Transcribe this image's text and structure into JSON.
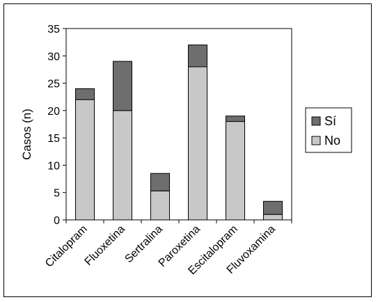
{
  "chart_data": {
    "type": "bar",
    "stacked": true,
    "categories": [
      "Citalopram",
      "Fluoxetina",
      "Sertralina",
      "Paroxetina",
      "Escitalopram",
      "Fluvoxamina"
    ],
    "series": [
      {
        "name": "No",
        "values": [
          22,
          20,
          5.3,
          28,
          18,
          1
        ],
        "color": "#c8c8c8"
      },
      {
        "name": "Sí",
        "values": [
          2,
          9,
          3.2,
          4,
          1,
          2.4
        ],
        "color": "#6e6e6e"
      }
    ],
    "ylabel": "Casos (n)",
    "xlabel": "",
    "title": "",
    "ylim": [
      0,
      35
    ],
    "yticks": [
      0,
      5,
      10,
      15,
      20,
      25,
      30,
      35
    ],
    "grid": false,
    "legend": {
      "position": "right",
      "entries": [
        "Sí",
        "No"
      ]
    }
  }
}
